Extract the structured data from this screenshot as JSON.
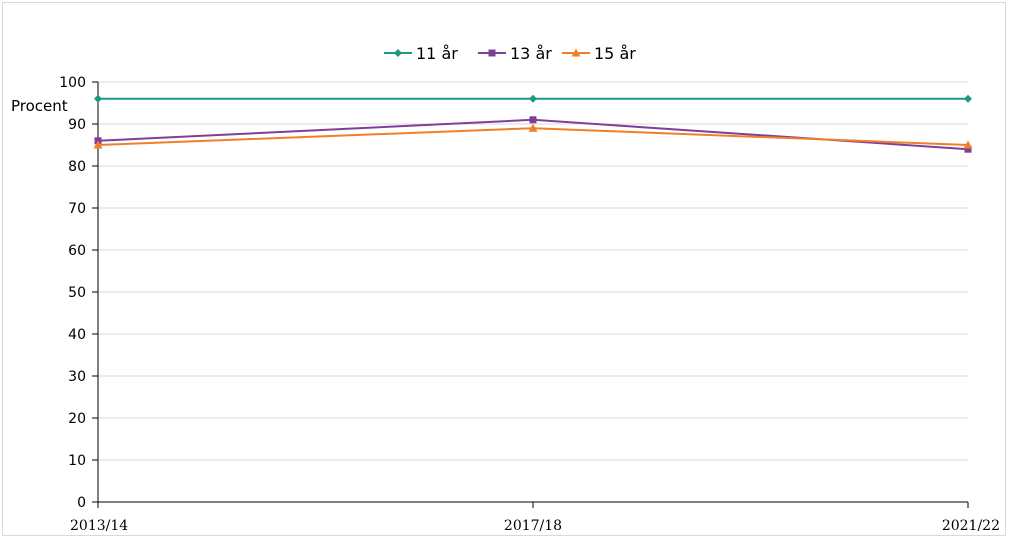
{
  "chart_data": {
    "type": "line",
    "categories": [
      "2013/14",
      "2017/18",
      "2021/22"
    ],
    "ylabel": "Procent",
    "ylim": [
      0,
      100
    ],
    "yticks": [
      0,
      10,
      20,
      30,
      40,
      50,
      60,
      70,
      80,
      90,
      100
    ],
    "grid": true,
    "legend_position": "top-center",
    "series": [
      {
        "name": "11 år",
        "values": [
          96,
          96,
          96
        ],
        "color": "#1a9a80",
        "marker": "diamond"
      },
      {
        "name": "13 år",
        "values": [
          86,
          91,
          84
        ],
        "color": "#7f3f98",
        "marker": "square"
      },
      {
        "name": "15 år",
        "values": [
          85,
          89,
          85
        ],
        "color": "#f07f2b",
        "marker": "triangle"
      }
    ]
  }
}
